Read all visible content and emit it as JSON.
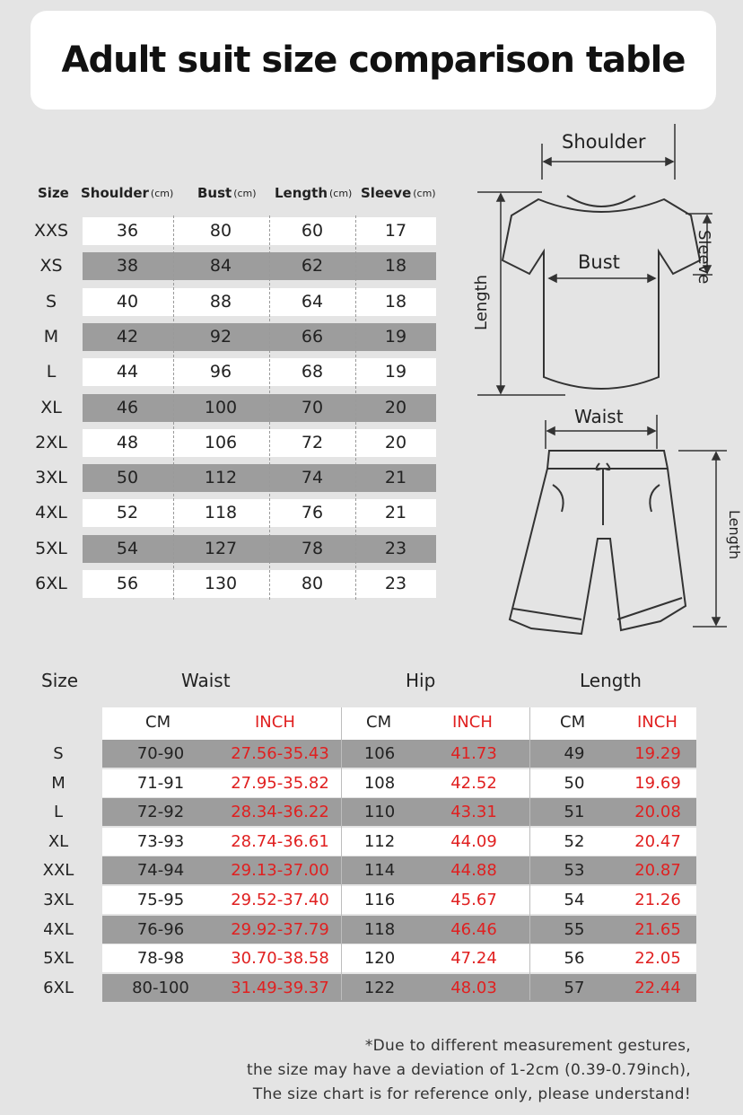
{
  "title": "Adult suit size comparison table",
  "top_table": {
    "headers": [
      {
        "label": "Size",
        "unit": ""
      },
      {
        "label": "Shoulder",
        "unit": "(cm)"
      },
      {
        "label": "Bust",
        "unit": "(cm)"
      },
      {
        "label": "Length",
        "unit": "(cm)"
      },
      {
        "label": "Sleeve",
        "unit": "(cm)"
      }
    ],
    "rows": [
      {
        "size": "XXS",
        "shoulder": "36",
        "bust": "80",
        "length": "60",
        "sleeve": "17"
      },
      {
        "size": "XS",
        "shoulder": "38",
        "bust": "84",
        "length": "62",
        "sleeve": "18"
      },
      {
        "size": "S",
        "shoulder": "40",
        "bust": "88",
        "length": "64",
        "sleeve": "18"
      },
      {
        "size": "M",
        "shoulder": "42",
        "bust": "92",
        "length": "66",
        "sleeve": "19"
      },
      {
        "size": "L",
        "shoulder": "44",
        "bust": "96",
        "length": "68",
        "sleeve": "19"
      },
      {
        "size": "XL",
        "shoulder": "46",
        "bust": "100",
        "length": "70",
        "sleeve": "20"
      },
      {
        "size": "2XL",
        "shoulder": "48",
        "bust": "106",
        "length": "72",
        "sleeve": "20"
      },
      {
        "size": "3XL",
        "shoulder": "50",
        "bust": "112",
        "length": "74",
        "sleeve": "21"
      },
      {
        "size": "4XL",
        "shoulder": "52",
        "bust": "118",
        "length": "76",
        "sleeve": "21"
      },
      {
        "size": "5XL",
        "shoulder": "54",
        "bust": "127",
        "length": "78",
        "sleeve": "23"
      },
      {
        "size": "6XL",
        "shoulder": "56",
        "bust": "130",
        "length": "80",
        "sleeve": "23"
      }
    ]
  },
  "diagram": {
    "shirt_labels": {
      "shoulder": "Shoulder",
      "bust": "Bust",
      "sleeve": "Sleeve",
      "length": "Length"
    },
    "shorts_labels": {
      "waist": "Waist",
      "length": "Length"
    }
  },
  "bottom_table": {
    "headers": {
      "size": "Size",
      "waist": "Waist",
      "hip": "Hip",
      "length": "Length"
    },
    "units": {
      "cm": "CM",
      "inch": "INCH"
    },
    "rows": [
      {
        "size": "S",
        "waist_cm": "70-90",
        "waist_in": "27.56-35.43",
        "hip_cm": "106",
        "hip_in": "41.73",
        "len_cm": "49",
        "len_in": "19.29"
      },
      {
        "size": "M",
        "waist_cm": "71-91",
        "waist_in": "27.95-35.82",
        "hip_cm": "108",
        "hip_in": "42.52",
        "len_cm": "50",
        "len_in": "19.69"
      },
      {
        "size": "L",
        "waist_cm": "72-92",
        "waist_in": "28.34-36.22",
        "hip_cm": "110",
        "hip_in": "43.31",
        "len_cm": "51",
        "len_in": "20.08"
      },
      {
        "size": "XL",
        "waist_cm": "73-93",
        "waist_in": "28.74-36.61",
        "hip_cm": "112",
        "hip_in": "44.09",
        "len_cm": "52",
        "len_in": "20.47"
      },
      {
        "size": "XXL",
        "waist_cm": "74-94",
        "waist_in": "29.13-37.00",
        "hip_cm": "114",
        "hip_in": "44.88",
        "len_cm": "53",
        "len_in": "20.87"
      },
      {
        "size": "3XL",
        "waist_cm": "75-95",
        "waist_in": "29.52-37.40",
        "hip_cm": "116",
        "hip_in": "45.67",
        "len_cm": "54",
        "len_in": "21.26"
      },
      {
        "size": "4XL",
        "waist_cm": "76-96",
        "waist_in": "29.92-37.79",
        "hip_cm": "118",
        "hip_in": "46.46",
        "len_cm": "55",
        "len_in": "21.65"
      },
      {
        "size": "5XL",
        "waist_cm": "78-98",
        "waist_in": "30.70-38.58",
        "hip_cm": "120",
        "hip_in": "47.24",
        "len_cm": "56",
        "len_in": "22.05"
      },
      {
        "size": "6XL",
        "waist_cm": "80-100",
        "waist_in": "31.49-39.37",
        "hip_cm": "122",
        "hip_in": "48.03",
        "len_cm": "57",
        "len_in": "22.44"
      }
    ]
  },
  "footnote": [
    "*Due to different measurement gestures,",
    "the size may have a deviation of 1-2cm (0.39-0.79inch),",
    "The size chart is for reference only, please understand!"
  ],
  "colors": {
    "background": "#e4e4e4",
    "band_dark": "#9d9d9d",
    "band_light": "#ffffff",
    "inch_text": "#e02020"
  }
}
